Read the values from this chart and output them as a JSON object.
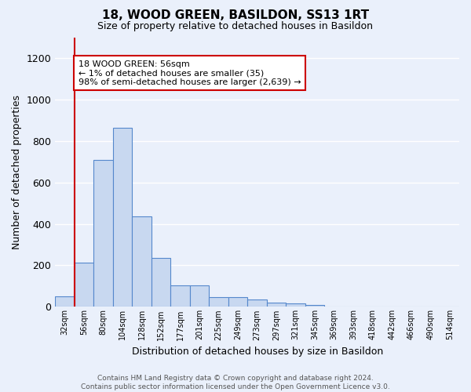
{
  "title": "18, WOOD GREEN, BASILDON, SS13 1RT",
  "subtitle": "Size of property relative to detached houses in Basildon",
  "xlabel": "Distribution of detached houses by size in Basildon",
  "ylabel": "Number of detached properties",
  "footer_line1": "Contains HM Land Registry data © Crown copyright and database right 2024.",
  "footer_line2": "Contains public sector information licensed under the Open Government Licence v3.0.",
  "bin_labels": [
    "32sqm",
    "56sqm",
    "80sqm",
    "104sqm",
    "128sqm",
    "152sqm",
    "177sqm",
    "201sqm",
    "225sqm",
    "249sqm",
    "273sqm",
    "297sqm",
    "321sqm",
    "345sqm",
    "369sqm",
    "393sqm",
    "418sqm",
    "442sqm",
    "466sqm",
    "490sqm",
    "514sqm"
  ],
  "bar_heights": [
    50,
    215,
    710,
    865,
    435,
    235,
    103,
    103,
    48,
    45,
    35,
    20,
    15,
    8,
    0,
    0,
    0,
    0,
    0,
    0,
    0
  ],
  "bar_color": "#c8d8f0",
  "bar_edge_color": "#5588cc",
  "red_line_index": 1,
  "annotation_text": "18 WOOD GREEN: 56sqm\n← 1% of detached houses are smaller (35)\n98% of semi-detached houses are larger (2,639) →",
  "annotation_box_color": "#ffffff",
  "annotation_box_edge": "#cc0000",
  "red_line_color": "#cc0000",
  "ylim": [
    0,
    1300
  ],
  "yticks": [
    0,
    200,
    400,
    600,
    800,
    1000,
    1200
  ],
  "background_color": "#eaf0fb",
  "grid_color": "#ffffff"
}
